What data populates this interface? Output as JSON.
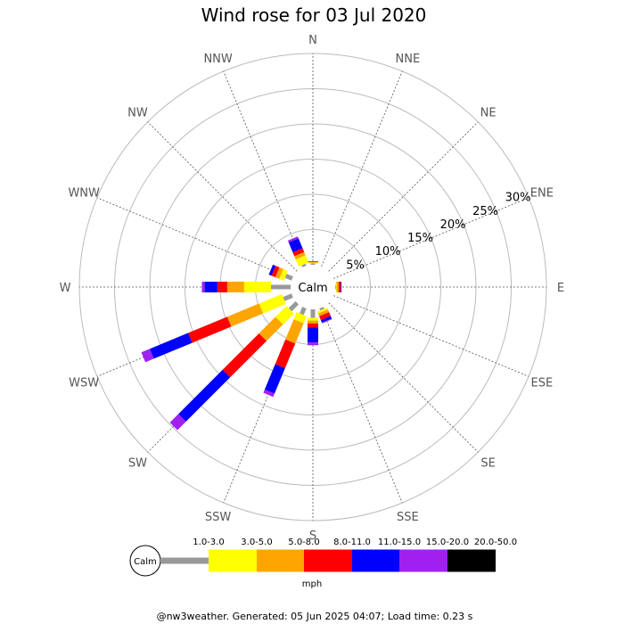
{
  "chart_data": {
    "type": "wind-rose",
    "title": "Wind rose for 03 Jul 2020",
    "directions": [
      "N",
      "NNE",
      "NE",
      "ENE",
      "E",
      "ESE",
      "SE",
      "SSE",
      "S",
      "SSW",
      "SW",
      "WSW",
      "W",
      "WNW",
      "NW",
      "NNW"
    ],
    "ring_labels": [
      "5%",
      "10%",
      "15%",
      "20%",
      "25%",
      "30%"
    ],
    "rmax_percent": 30,
    "calm_label": "Calm",
    "unit": "mph",
    "bins": [
      {
        "label": "1.0-3.0",
        "color": "#999999"
      },
      {
        "label": "3.0-5.0",
        "color": "#ffff00"
      },
      {
        "label": "5.0-8.0",
        "color": "#ffa500"
      },
      {
        "label": "8.0-11.0",
        "color": "#ff0000"
      },
      {
        "label": "11.0-15.0",
        "color": "#0000ff"
      },
      {
        "label": "15.0-20.0",
        "color": "#a020f0"
      },
      {
        "label": "20.0-50.0",
        "color": "#000000"
      }
    ],
    "series": [
      {
        "direction": "N",
        "values": [
          0.2,
          0.1,
          0.1,
          0.1,
          0,
          0,
          0
        ]
      },
      {
        "direction": "NNE",
        "values": [
          0,
          0,
          0,
          0,
          0,
          0,
          0
        ]
      },
      {
        "direction": "NE",
        "values": [
          0,
          0,
          0,
          0,
          0,
          0,
          0
        ]
      },
      {
        "direction": "ENE",
        "values": [
          0,
          0,
          0,
          0,
          0,
          0,
          0
        ]
      },
      {
        "direction": "E",
        "values": [
          0.1,
          0.1,
          0.3,
          0.3,
          0.1,
          0,
          0
        ]
      },
      {
        "direction": "ESE",
        "values": [
          0,
          0,
          0,
          0,
          0,
          0,
          0
        ]
      },
      {
        "direction": "SE",
        "values": [
          0,
          0,
          0,
          0,
          0,
          0,
          0
        ]
      },
      {
        "direction": "SSE",
        "values": [
          0.3,
          0.3,
          0.4,
          0.6,
          0.4,
          0.1,
          0
        ]
      },
      {
        "direction": "S",
        "values": [
          1.2,
          0.4,
          0.4,
          0.6,
          2.1,
          0.4,
          0
        ]
      },
      {
        "direction": "SSW",
        "values": [
          1.0,
          1.1,
          3.1,
          3.8,
          3.9,
          0.5,
          0
        ]
      },
      {
        "direction": "SW",
        "values": [
          1.4,
          2.2,
          3.3,
          7.3,
          8.9,
          1.7,
          0
        ]
      },
      {
        "direction": "WSW",
        "values": [
          1.3,
          3.5,
          4.9,
          6.0,
          5.9,
          1.3,
          0
        ]
      },
      {
        "direction": "W",
        "values": [
          2.8,
          3.8,
          2.4,
          1.4,
          1.8,
          0.4,
          0
        ]
      },
      {
        "direction": "WNW",
        "values": [
          1.0,
          0.7,
          0.6,
          0.6,
          0.4,
          0,
          0
        ]
      },
      {
        "direction": "NW",
        "values": [
          0,
          0,
          0,
          0,
          0,
          0,
          0
        ]
      },
      {
        "direction": "NNW",
        "values": [
          0.3,
          1.1,
          0.5,
          0.6,
          1.5,
          0.3,
          0
        ]
      }
    ]
  },
  "footer": "@nw3weather. Generated: 05 Jun 2025 04:07; Load time: 0.23 s"
}
